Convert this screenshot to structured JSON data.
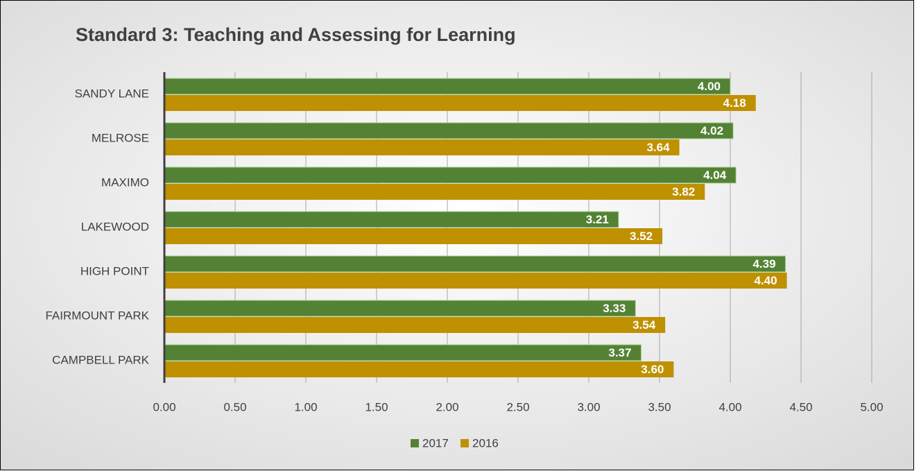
{
  "chart_data": {
    "type": "hbar",
    "title": "Standard 3: Teaching and Assessing for Learning",
    "categories": [
      "SANDY LANE",
      "MELROSE",
      "MAXIMO",
      "LAKEWOOD",
      "HIGH POINT",
      "FAIRMOUNT PARK",
      "CAMPBELL PARK"
    ],
    "series": [
      {
        "name": "2017",
        "color": "#548235",
        "values": [
          4.0,
          4.02,
          4.04,
          3.21,
          4.39,
          3.33,
          3.37
        ],
        "value_labels": [
          "4.00",
          "4.02",
          "4.04",
          "3.21",
          "4.39",
          "3.33",
          "3.37"
        ]
      },
      {
        "name": "2016",
        "color": "#bf9000",
        "values": [
          4.18,
          3.64,
          3.82,
          3.52,
          4.4,
          3.54,
          3.6
        ],
        "value_labels": [
          "4.18",
          "3.64",
          "3.82",
          "3.52",
          "4.40",
          "3.54",
          "3.60"
        ]
      }
    ],
    "xlim": [
      0,
      5
    ],
    "xticks": [
      {
        "value": 0,
        "label": "0.00"
      },
      {
        "value": 0.5,
        "label": "0.50"
      },
      {
        "value": 1,
        "label": "1.00"
      },
      {
        "value": 1.5,
        "label": "1.50"
      },
      {
        "value": 2,
        "label": "2.00"
      },
      {
        "value": 2.5,
        "label": "2.50"
      },
      {
        "value": 3,
        "label": "3.00"
      },
      {
        "value": 3.5,
        "label": "3.50"
      },
      {
        "value": 4,
        "label": "4.00"
      },
      {
        "value": 4.5,
        "label": "4.50"
      },
      {
        "value": 5,
        "label": "5.00"
      }
    ],
    "grid": true,
    "legend": "bottom"
  }
}
